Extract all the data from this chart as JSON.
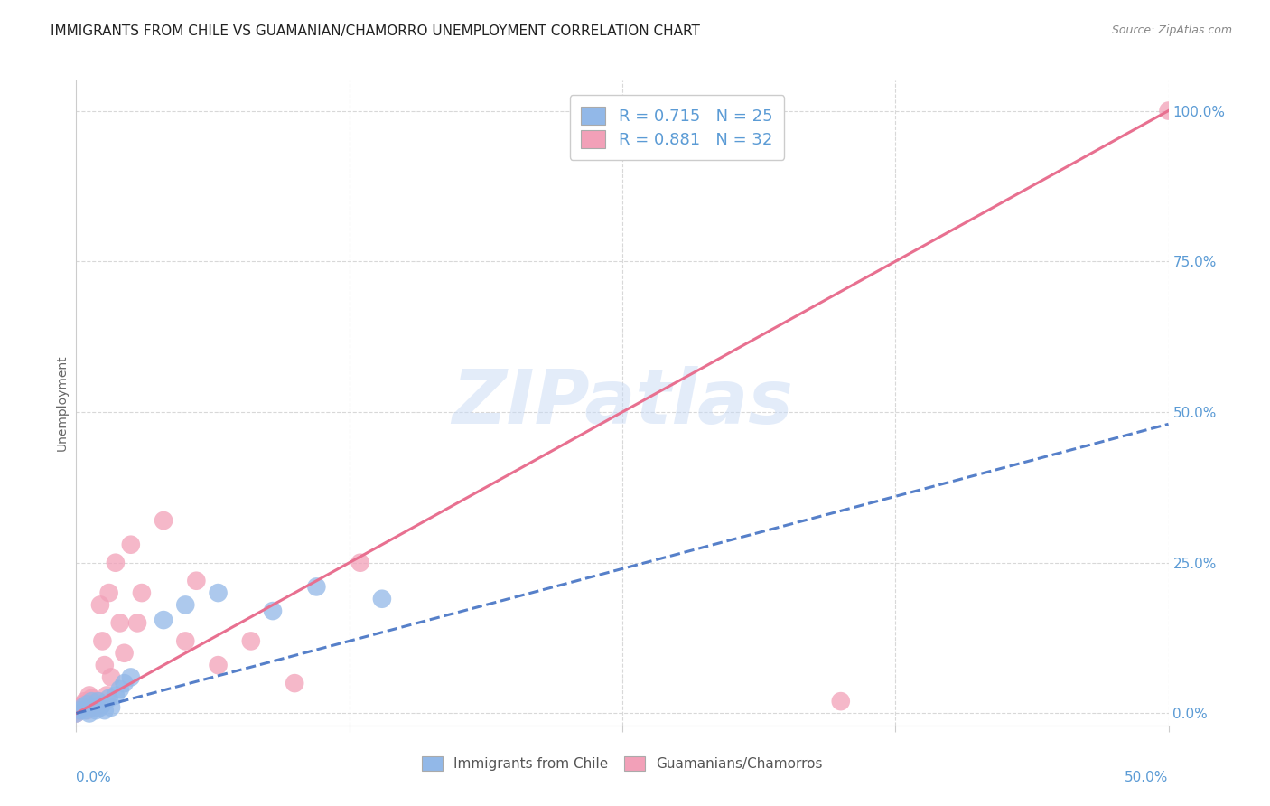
{
  "title": "IMMIGRANTS FROM CHILE VS GUAMANIAN/CHAMORRO UNEMPLOYMENT CORRELATION CHART",
  "source": "Source: ZipAtlas.com",
  "ylabel": "Unemployment",
  "right_yticks": [
    "0.0%",
    "25.0%",
    "50.0%",
    "75.0%",
    "100.0%"
  ],
  "right_ytick_vals": [
    0.0,
    0.25,
    0.5,
    0.75,
    1.0
  ],
  "xlim": [
    0.0,
    0.5
  ],
  "ylim": [
    -0.02,
    1.05
  ],
  "chile_color": "#92b8e8",
  "chamorro_color": "#f2a0b8",
  "chile_line_color": "#4472c4",
  "chamorro_line_color": "#e87090",
  "chile_R": 0.715,
  "chile_N": 25,
  "chamorro_R": 0.881,
  "chamorro_N": 32,
  "chile_scatter_x": [
    0.0,
    0.002,
    0.003,
    0.004,
    0.005,
    0.006,
    0.007,
    0.008,
    0.009,
    0.01,
    0.011,
    0.012,
    0.013,
    0.015,
    0.016,
    0.018,
    0.02,
    0.022,
    0.025,
    0.04,
    0.05,
    0.065,
    0.09,
    0.11,
    0.14
  ],
  "chile_scatter_y": [
    0.0,
    0.005,
    0.01,
    0.005,
    0.015,
    0.0,
    0.02,
    0.01,
    0.005,
    0.02,
    0.01,
    0.015,
    0.005,
    0.025,
    0.01,
    0.03,
    0.04,
    0.05,
    0.06,
    0.155,
    0.18,
    0.2,
    0.17,
    0.21,
    0.19
  ],
  "chamorro_scatter_x": [
    0.0,
    0.001,
    0.002,
    0.003,
    0.004,
    0.005,
    0.006,
    0.007,
    0.008,
    0.009,
    0.01,
    0.011,
    0.012,
    0.013,
    0.014,
    0.015,
    0.016,
    0.018,
    0.02,
    0.022,
    0.025,
    0.028,
    0.03,
    0.04,
    0.05,
    0.055,
    0.065,
    0.08,
    0.1,
    0.13,
    0.35,
    0.5
  ],
  "chamorro_scatter_y": [
    0.0,
    0.005,
    0.01,
    0.015,
    0.02,
    0.005,
    0.03,
    0.025,
    0.015,
    0.01,
    0.02,
    0.18,
    0.12,
    0.08,
    0.03,
    0.2,
    0.06,
    0.25,
    0.15,
    0.1,
    0.28,
    0.15,
    0.2,
    0.32,
    0.12,
    0.22,
    0.08,
    0.12,
    0.05,
    0.25,
    0.02,
    1.0
  ],
  "chile_trend_x": [
    0.0,
    0.5
  ],
  "chile_trend_y": [
    0.0,
    0.48
  ],
  "chamorro_trend_x": [
    0.0,
    0.5
  ],
  "chamorro_trend_y": [
    0.0,
    1.0
  ],
  "watermark": "ZIPatlas",
  "background_color": "#ffffff",
  "grid_color": "#d8d8d8",
  "title_fontsize": 11,
  "axis_label_color": "#5b9bd5",
  "tick_label_color": "#5b9bd5",
  "source_color": "#888888"
}
